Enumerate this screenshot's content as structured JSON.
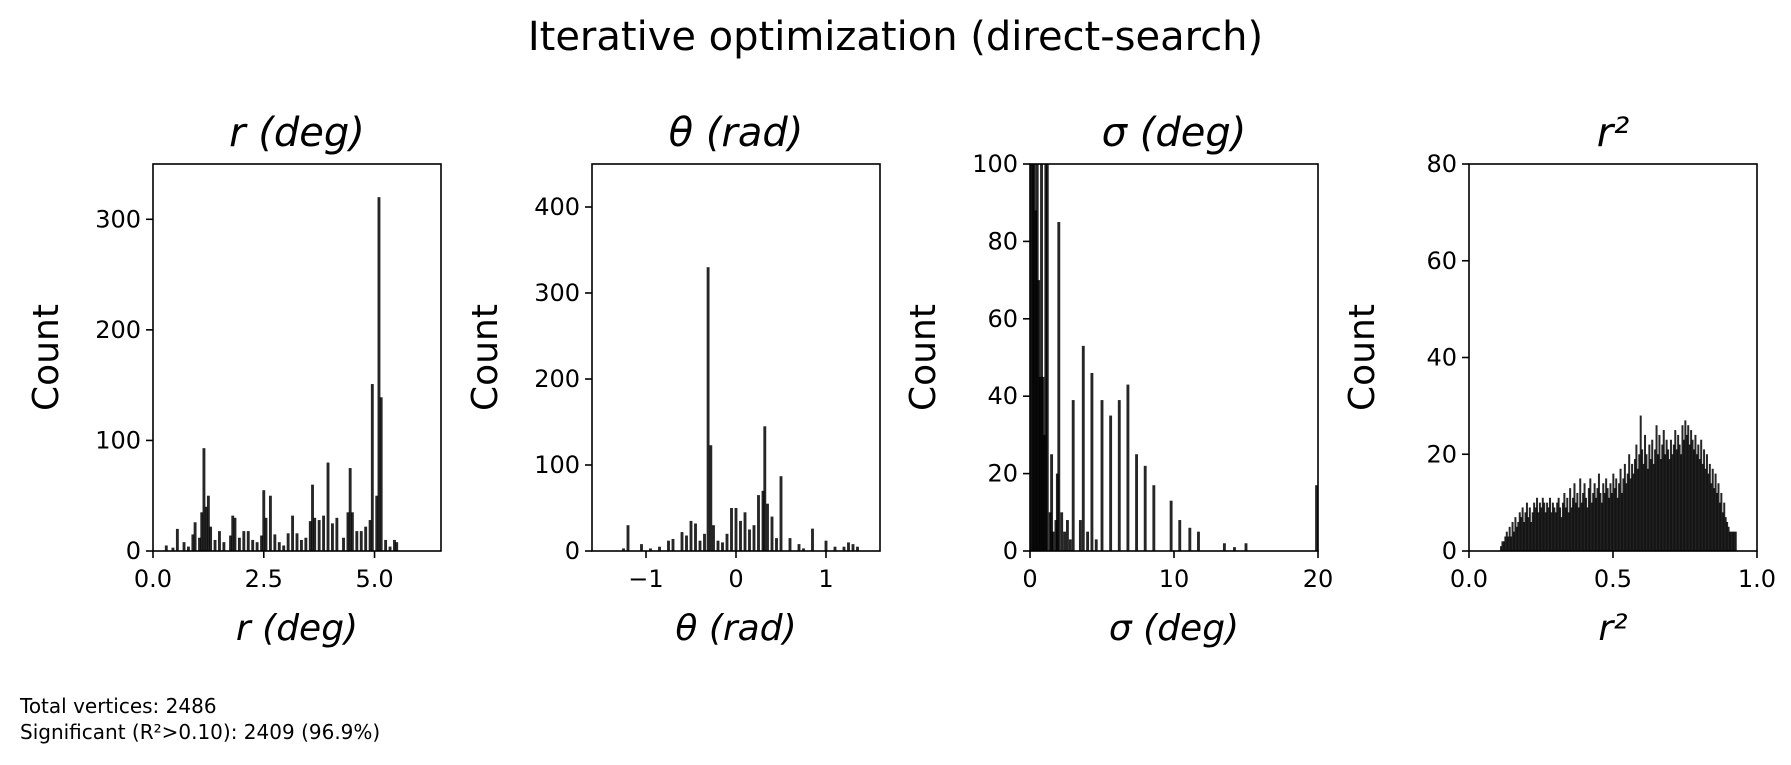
{
  "figure": {
    "title": "Iterative optimization (direct-search)",
    "notes": [
      "Total vertices: 2486",
      "Significant (R²>0.10): 2409 (96.9%)"
    ]
  },
  "chart_data": [
    {
      "type": "bar",
      "title": "r (deg)",
      "xlabel": "r (deg)",
      "ylabel": "Count",
      "xlim": [
        0.0,
        6.5
      ],
      "ylim": [
        0,
        350
      ],
      "xticks": [
        "0.0",
        "2.5",
        "5.0"
      ],
      "xtick_values": [
        0.0,
        2.5,
        5.0
      ],
      "yticks": [
        "0",
        "100",
        "200",
        "300"
      ],
      "ytick_values": [
        0,
        100,
        200,
        300
      ],
      "bar_width": 0.065,
      "bars": [
        [
          0.3,
          5
        ],
        [
          0.45,
          3
        ],
        [
          0.55,
          20
        ],
        [
          0.7,
          8
        ],
        [
          0.8,
          4
        ],
        [
          0.9,
          15
        ],
        [
          0.95,
          26
        ],
        [
          1.05,
          12
        ],
        [
          1.1,
          35
        ],
        [
          1.15,
          93
        ],
        [
          1.2,
          40
        ],
        [
          1.25,
          50
        ],
        [
          1.3,
          22
        ],
        [
          1.4,
          10
        ],
        [
          1.5,
          18
        ],
        [
          1.6,
          8
        ],
        [
          1.75,
          14
        ],
        [
          1.8,
          32
        ],
        [
          1.85,
          30
        ],
        [
          1.95,
          12
        ],
        [
          2.05,
          18
        ],
        [
          2.15,
          18
        ],
        [
          2.25,
          10
        ],
        [
          2.35,
          8
        ],
        [
          2.45,
          14
        ],
        [
          2.5,
          55
        ],
        [
          2.55,
          30
        ],
        [
          2.65,
          50
        ],
        [
          2.75,
          15
        ],
        [
          2.85,
          8
        ],
        [
          2.95,
          5
        ],
        [
          3.05,
          16
        ],
        [
          3.15,
          32
        ],
        [
          3.25,
          16
        ],
        [
          3.35,
          10
        ],
        [
          3.45,
          12
        ],
        [
          3.55,
          27
        ],
        [
          3.6,
          60
        ],
        [
          3.65,
          30
        ],
        [
          3.75,
          28
        ],
        [
          3.85,
          32
        ],
        [
          3.95,
          80
        ],
        [
          4.05,
          25
        ],
        [
          4.15,
          30
        ],
        [
          4.3,
          12
        ],
        [
          4.4,
          35
        ],
        [
          4.45,
          75
        ],
        [
          4.5,
          35
        ],
        [
          4.6,
          18
        ],
        [
          4.7,
          18
        ],
        [
          4.8,
          22
        ],
        [
          4.9,
          28
        ],
        [
          4.95,
          151
        ],
        [
          5.05,
          50
        ],
        [
          5.1,
          320
        ],
        [
          5.15,
          139
        ],
        [
          5.25,
          10
        ],
        [
          5.35,
          4
        ],
        [
          5.45,
          10
        ],
        [
          5.5,
          8
        ]
      ]
    },
    {
      "type": "bar",
      "title": "θ (rad)",
      "xlabel": "θ (rad)",
      "ylabel": "Count",
      "xlim": [
        -1.6,
        1.6
      ],
      "ylim": [
        0,
        450
      ],
      "xticks": [
        "−1",
        "0",
        "1"
      ],
      "xtick_values": [
        -1,
        0,
        1
      ],
      "yticks": [
        "0",
        "100",
        "200",
        "300",
        "400"
      ],
      "ytick_values": [
        0,
        100,
        200,
        300,
        400
      ],
      "bar_width": 0.032,
      "bars": [
        [
          -1.25,
          3
        ],
        [
          -1.2,
          30
        ],
        [
          -1.05,
          8
        ],
        [
          -0.95,
          3
        ],
        [
          -0.85,
          5
        ],
        [
          -0.75,
          12
        ],
        [
          -0.7,
          14
        ],
        [
          -0.6,
          22
        ],
        [
          -0.55,
          18
        ],
        [
          -0.5,
          35
        ],
        [
          -0.45,
          32
        ],
        [
          -0.4,
          12
        ],
        [
          -0.35,
          20
        ],
        [
          -0.31,
          330
        ],
        [
          -0.28,
          123
        ],
        [
          -0.25,
          30
        ],
        [
          -0.2,
          12
        ],
        [
          -0.15,
          10
        ],
        [
          -0.1,
          20
        ],
        [
          -0.05,
          50
        ],
        [
          0.0,
          50
        ],
        [
          0.05,
          35
        ],
        [
          0.1,
          45
        ],
        [
          0.15,
          25
        ],
        [
          0.2,
          30
        ],
        [
          0.25,
          65
        ],
        [
          0.3,
          70
        ],
        [
          0.32,
          145
        ],
        [
          0.35,
          55
        ],
        [
          0.4,
          40
        ],
        [
          0.45,
          15
        ],
        [
          0.5,
          87
        ],
        [
          0.6,
          15
        ],
        [
          0.7,
          8
        ],
        [
          0.75,
          3
        ],
        [
          0.85,
          26
        ],
        [
          1.0,
          12
        ],
        [
          1.1,
          5
        ],
        [
          1.2,
          5
        ],
        [
          1.25,
          10
        ],
        [
          1.3,
          8
        ],
        [
          1.35,
          5
        ]
      ]
    },
    {
      "type": "bar",
      "title": "σ (deg)",
      "xlabel": "σ (deg)",
      "ylabel": "Count",
      "xlim": [
        0,
        20
      ],
      "ylim": [
        0,
        100
      ],
      "xticks": [
        "0",
        "10",
        "20"
      ],
      "xtick_values": [
        0,
        10,
        20
      ],
      "yticks": [
        "0",
        "20",
        "40",
        "60",
        "80",
        "100"
      ],
      "ytick_values": [
        0,
        20,
        40,
        60,
        80,
        100
      ],
      "bar_width": 0.2,
      "bars": [
        [
          0.1,
          100
        ],
        [
          0.2,
          100
        ],
        [
          0.3,
          100
        ],
        [
          0.4,
          88
        ],
        [
          0.5,
          100
        ],
        [
          0.6,
          70
        ],
        [
          0.7,
          45
        ],
        [
          0.8,
          100
        ],
        [
          0.9,
          45
        ],
        [
          1.0,
          30
        ],
        [
          1.1,
          100
        ],
        [
          1.2,
          100
        ],
        [
          1.4,
          10
        ],
        [
          1.5,
          25
        ],
        [
          1.6,
          5
        ],
        [
          1.8,
          8
        ],
        [
          1.9,
          20
        ],
        [
          2.0,
          85
        ],
        [
          2.2,
          10
        ],
        [
          2.4,
          5
        ],
        [
          2.6,
          8
        ],
        [
          2.8,
          3
        ],
        [
          3.0,
          39
        ],
        [
          3.5,
          8
        ],
        [
          3.7,
          53
        ],
        [
          4.0,
          5
        ],
        [
          4.3,
          46
        ],
        [
          4.6,
          3
        ],
        [
          5.0,
          39
        ],
        [
          5.6,
          35
        ],
        [
          6.2,
          39
        ],
        [
          6.8,
          43
        ],
        [
          7.4,
          25
        ],
        [
          8.0,
          22
        ],
        [
          8.6,
          17
        ],
        [
          9.8,
          13
        ],
        [
          10.4,
          8
        ],
        [
          11.1,
          6
        ],
        [
          11.7,
          5
        ],
        [
          13.5,
          2
        ],
        [
          14.2,
          1
        ],
        [
          15.0,
          2
        ],
        [
          19.9,
          17
        ]
      ]
    },
    {
      "type": "bar",
      "title": "r²",
      "xlabel": "r²",
      "ylabel": "Count",
      "xlim": [
        0.0,
        1.0
      ],
      "ylim": [
        0,
        80
      ],
      "xticks": [
        "0.0",
        "0.5",
        "1.0"
      ],
      "xtick_values": [
        0.0,
        0.5,
        1.0
      ],
      "yticks": [
        "0",
        "20",
        "40",
        "60",
        "80"
      ],
      "ytick_values": [
        0,
        20,
        40,
        60,
        80
      ],
      "bar_width": 0.0045,
      "bars": [
        [
          0.11,
          1
        ],
        [
          0.115,
          2
        ],
        [
          0.12,
          2
        ],
        [
          0.125,
          3
        ],
        [
          0.13,
          4
        ],
        [
          0.135,
          3
        ],
        [
          0.14,
          5
        ],
        [
          0.145,
          3
        ],
        [
          0.15,
          6
        ],
        [
          0.155,
          4
        ],
        [
          0.16,
          7
        ],
        [
          0.165,
          5
        ],
        [
          0.17,
          6
        ],
        [
          0.175,
          8
        ],
        [
          0.18,
          7
        ],
        [
          0.185,
          9
        ],
        [
          0.19,
          6
        ],
        [
          0.195,
          8
        ],
        [
          0.2,
          10
        ],
        [
          0.205,
          7
        ],
        [
          0.21,
          9
        ],
        [
          0.215,
          6
        ],
        [
          0.22,
          8
        ],
        [
          0.225,
          10
        ],
        [
          0.23,
          9
        ],
        [
          0.235,
          11
        ],
        [
          0.24,
          8
        ],
        [
          0.245,
          10
        ],
        [
          0.25,
          9
        ],
        [
          0.255,
          11
        ],
        [
          0.26,
          10
        ],
        [
          0.265,
          8
        ],
        [
          0.27,
          10
        ],
        [
          0.275,
          9
        ],
        [
          0.28,
          11
        ],
        [
          0.285,
          8
        ],
        [
          0.29,
          10
        ],
        [
          0.295,
          9
        ],
        [
          0.3,
          8
        ],
        [
          0.305,
          10
        ],
        [
          0.31,
          11
        ],
        [
          0.315,
          9
        ],
        [
          0.32,
          7
        ],
        [
          0.325,
          10
        ],
        [
          0.33,
          12
        ],
        [
          0.335,
          9
        ],
        [
          0.34,
          11
        ],
        [
          0.345,
          8
        ],
        [
          0.35,
          13
        ],
        [
          0.355,
          9
        ],
        [
          0.36,
          11
        ],
        [
          0.365,
          14
        ],
        [
          0.37,
          10
        ],
        [
          0.375,
          12
        ],
        [
          0.38,
          9
        ],
        [
          0.385,
          15
        ],
        [
          0.39,
          10
        ],
        [
          0.395,
          12
        ],
        [
          0.4,
          14
        ],
        [
          0.405,
          11
        ],
        [
          0.41,
          9
        ],
        [
          0.415,
          13
        ],
        [
          0.42,
          15
        ],
        [
          0.425,
          10
        ],
        [
          0.43,
          12
        ],
        [
          0.435,
          14
        ],
        [
          0.44,
          11
        ],
        [
          0.445,
          13
        ],
        [
          0.45,
          16
        ],
        [
          0.455,
          12
        ],
        [
          0.46,
          10
        ],
        [
          0.465,
          14
        ],
        [
          0.47,
          12
        ],
        [
          0.475,
          15
        ],
        [
          0.48,
          13
        ],
        [
          0.485,
          11
        ],
        [
          0.49,
          14
        ],
        [
          0.495,
          12
        ],
        [
          0.5,
          16
        ],
        [
          0.505,
          13
        ],
        [
          0.51,
          15
        ],
        [
          0.515,
          11
        ],
        [
          0.52,
          14
        ],
        [
          0.525,
          17
        ],
        [
          0.53,
          12
        ],
        [
          0.535,
          15
        ],
        [
          0.54,
          18
        ],
        [
          0.545,
          14
        ],
        [
          0.55,
          16
        ],
        [
          0.555,
          20
        ],
        [
          0.56,
          15
        ],
        [
          0.565,
          18
        ],
        [
          0.57,
          16
        ],
        [
          0.575,
          19
        ],
        [
          0.58,
          22
        ],
        [
          0.585,
          17
        ],
        [
          0.59,
          20
        ],
        [
          0.595,
          28
        ],
        [
          0.6,
          21
        ],
        [
          0.605,
          18
        ],
        [
          0.61,
          24
        ],
        [
          0.615,
          20
        ],
        [
          0.62,
          17
        ],
        [
          0.625,
          22
        ],
        [
          0.63,
          19
        ],
        [
          0.635,
          23
        ],
        [
          0.64,
          18
        ],
        [
          0.645,
          21
        ],
        [
          0.65,
          26
        ],
        [
          0.655,
          20
        ],
        [
          0.66,
          24
        ],
        [
          0.665,
          19
        ],
        [
          0.67,
          22
        ],
        [
          0.675,
          25
        ],
        [
          0.68,
          20
        ],
        [
          0.685,
          23
        ],
        [
          0.69,
          21
        ],
        [
          0.695,
          19
        ],
        [
          0.7,
          23
        ],
        [
          0.705,
          20
        ],
        [
          0.71,
          22
        ],
        [
          0.715,
          25
        ],
        [
          0.72,
          21
        ],
        [
          0.725,
          24
        ],
        [
          0.73,
          22
        ],
        [
          0.735,
          20
        ],
        [
          0.74,
          26
        ],
        [
          0.745,
          23
        ],
        [
          0.75,
          27
        ],
        [
          0.755,
          24
        ],
        [
          0.76,
          26
        ],
        [
          0.765,
          22
        ],
        [
          0.77,
          25
        ],
        [
          0.775,
          23
        ],
        [
          0.78,
          21
        ],
        [
          0.785,
          24
        ],
        [
          0.79,
          20
        ],
        [
          0.795,
          22
        ],
        [
          0.8,
          19
        ],
        [
          0.805,
          23
        ],
        [
          0.81,
          18
        ],
        [
          0.815,
          21
        ],
        [
          0.82,
          17
        ],
        [
          0.825,
          20
        ],
        [
          0.83,
          16
        ],
        [
          0.835,
          18
        ],
        [
          0.84,
          14
        ],
        [
          0.845,
          17
        ],
        [
          0.85,
          13
        ],
        [
          0.855,
          16
        ],
        [
          0.86,
          12
        ],
        [
          0.865,
          14
        ],
        [
          0.87,
          10
        ],
        [
          0.875,
          12
        ],
        [
          0.88,
          8
        ],
        [
          0.885,
          10
        ],
        [
          0.89,
          7
        ],
        [
          0.895,
          6
        ],
        [
          0.9,
          5
        ],
        [
          0.905,
          4
        ],
        [
          0.91,
          4
        ],
        [
          0.915,
          4
        ],
        [
          0.92,
          4
        ],
        [
          0.925,
          4
        ]
      ]
    }
  ]
}
